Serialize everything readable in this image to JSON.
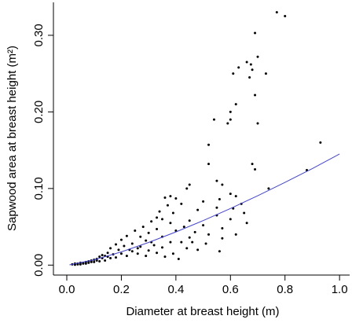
{
  "chart_data": {
    "type": "scatter",
    "xlabel": "Diameter at breast height (m)",
    "ylabel": "Sapwood area at breast height (m²)",
    "xlim": [
      -0.049,
      1.037
    ],
    "ylim": [
      -0.013,
      0.343
    ],
    "xticks": [
      {
        "value": 0,
        "label": "0.0"
      },
      0.2,
      0.4,
      0.6,
      0.8,
      {
        "value": 1,
        "label": "1.0"
      }
    ],
    "yticks": [
      {
        "value": 0,
        "label": "0.00"
      },
      {
        "value": 0.1,
        "label": "0.10"
      },
      {
        "value": 0.2,
        "label": "0.20"
      },
      {
        "value": 0.3,
        "label": "0.30"
      }
    ],
    "series": [
      {
        "type": "scatter",
        "color": "#000000",
        "x": [
          0.77,
          0.8,
          0.69,
          0.7,
          0.66,
          0.675,
          0.68,
          0.63,
          0.61,
          0.67,
          0.73,
          0.69,
          0.62,
          0.6,
          0.6,
          0.59,
          0.54,
          0.7,
          0.52,
          0.93,
          0.52,
          0.68,
          0.88,
          0.69,
          0.55,
          0.57,
          0.45,
          0.44,
          0.74,
          0.6,
          0.62,
          0.38,
          0.36,
          0.4,
          0.56,
          0.5,
          0.64,
          0.42,
          0.37,
          0.55,
          0.61,
          0.48,
          0.34,
          0.65,
          0.39,
          0.55,
          0.33,
          0.35,
          0.6,
          0.45,
          0.31,
          0.66,
          0.38,
          0.5,
          0.28,
          0.43,
          0.57,
          0.33,
          0.25,
          0.4,
          0.47,
          0.3,
          0.52,
          0.62,
          0.22,
          0.27,
          0.35,
          0.45,
          0.57,
          0.2,
          0.29,
          0.38,
          0.42,
          0.51,
          0.24,
          0.18,
          0.32,
          0.21,
          0.27,
          0.35,
          0.44,
          0.16,
          0.19,
          0.23,
          0.3,
          0.48,
          0.56,
          0.39,
          0.33,
          0.26,
          0.2,
          0.15,
          0.17,
          0.22,
          0.29,
          0.36,
          0.41,
          0.14,
          0.12,
          0.13,
          0.16,
          0.18,
          0.11,
          0.1,
          0.14,
          0.09,
          0.12,
          0.08,
          0.07,
          0.1,
          0.06,
          0.05,
          0.08,
          0.04,
          0.03,
          0.06,
          0.02,
          0.04,
          0.05,
          0.03,
          0.07,
          0.09,
          0.11,
          0.13,
          0.15,
          0.24,
          0.26,
          0.31,
          0.46
        ],
        "values": [
          0.33,
          0.325,
          0.303,
          0.272,
          0.265,
          0.262,
          0.255,
          0.258,
          0.25,
          0.245,
          0.25,
          0.222,
          0.21,
          0.2,
          0.19,
          0.185,
          0.19,
          0.185,
          0.157,
          0.16,
          0.132,
          0.132,
          0.124,
          0.125,
          0.11,
          0.105,
          0.105,
          0.1,
          0.1,
          0.093,
          0.09,
          0.09,
          0.088,
          0.087,
          0.086,
          0.083,
          0.08,
          0.08,
          0.078,
          0.075,
          0.074,
          0.072,
          0.07,
          0.068,
          0.068,
          0.065,
          0.062,
          0.06,
          0.06,
          0.058,
          0.057,
          0.055,
          0.055,
          0.052,
          0.05,
          0.05,
          0.048,
          0.047,
          0.045,
          0.045,
          0.043,
          0.042,
          0.04,
          0.04,
          0.038,
          0.037,
          0.037,
          0.036,
          0.035,
          0.033,
          0.032,
          0.03,
          0.03,
          0.028,
          0.028,
          0.027,
          0.026,
          0.025,
          0.024,
          0.023,
          0.022,
          0.022,
          0.02,
          0.02,
          0.019,
          0.02,
          0.018,
          0.015,
          0.016,
          0.015,
          0.015,
          0.016,
          0.014,
          0.012,
          0.012,
          0.011,
          0.008,
          0.012,
          0.011,
          0.009,
          0.009,
          0.01,
          0.008,
          0.007,
          0.006,
          0.006,
          0.005,
          0.005,
          0.004,
          0.004,
          0.003,
          0.003,
          0.003,
          0.002,
          0.002,
          0.002,
          0.001,
          0.001,
          0.001,
          0.0005,
          0.002,
          0.004,
          0.006,
          0.013,
          0.011,
          0.018,
          0.022,
          0.03,
          0.03
        ]
      },
      {
        "type": "line",
        "color": "#4444cc",
        "x": [
          0.01,
          0.1,
          0.2,
          0.3,
          0.4,
          0.5,
          0.6,
          0.7,
          0.8,
          0.9,
          1.0
        ],
        "values": [
          0.0003,
          0.0069,
          0.0173,
          0.0296,
          0.0433,
          0.0581,
          0.0739,
          0.0906,
          0.108,
          0.126,
          0.145
        ]
      }
    ]
  }
}
